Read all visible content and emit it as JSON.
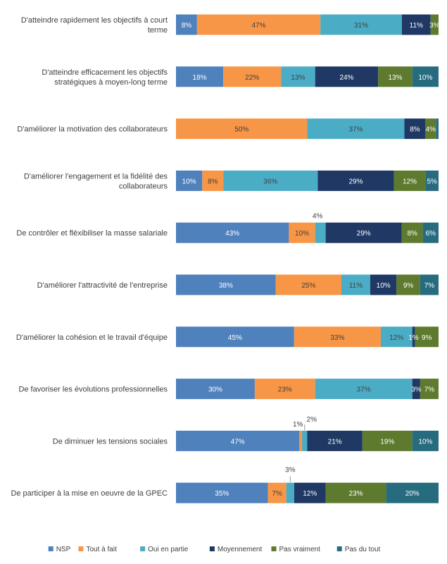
{
  "chart_data": {
    "type": "bar",
    "orientation": "horizontal",
    "stacked": true,
    "xlim": [
      0,
      100
    ],
    "grid": false,
    "legend_position": "bottom",
    "series": [
      {
        "name": "NSP",
        "color": "#4f81bd"
      },
      {
        "name": "Tout à fait",
        "color": "#f79646"
      },
      {
        "name": "Oui en partie",
        "color": "#4bacc6"
      },
      {
        "name": "Moyennement",
        "color": "#1f3864"
      },
      {
        "name": "Pas vraiment",
        "color": "#5e7a2e"
      },
      {
        "name": "Pas du tout",
        "color": "#276b7f"
      }
    ],
    "categories": [
      {
        "label_lines": [
          "D'atteindre rapidement les objectifs à court",
          "terme"
        ],
        "values": [
          8,
          47,
          31,
          11,
          3,
          0
        ],
        "labels": [
          "8%",
          "47%",
          "31%",
          "11%",
          "3%",
          ""
        ],
        "outside_labels": []
      },
      {
        "label_lines": [
          "D'atteindre efficacement les objectifs",
          "stratégiques à moyen-long terme"
        ],
        "values": [
          18,
          22,
          13,
          24,
          13,
          10
        ],
        "labels": [
          "18%",
          "22%",
          "13%",
          "24%",
          "13%",
          "10%"
        ],
        "outside_labels": []
      },
      {
        "label_lines": [
          "D'améliorer la motivation des collaborateurs"
        ],
        "values": [
          0,
          50,
          37,
          8,
          4,
          1
        ],
        "labels": [
          "",
          "50%",
          "37%",
          "8%",
          "4%",
          ""
        ],
        "outside_labels": []
      },
      {
        "label_lines": [
          "D'améliorer l'engagement et la fidélité des",
          "collaborateurs"
        ],
        "values": [
          10,
          8,
          36,
          29,
          12,
          5
        ],
        "labels": [
          "10%",
          "8%",
          "36%",
          "29%",
          "12%",
          "5%"
        ],
        "outside_labels": []
      },
      {
        "label_lines": [
          "De contrôler et fléxibiliser la masse salariale"
        ],
        "values": [
          43,
          10,
          4,
          29,
          8,
          6
        ],
        "labels": [
          "43%",
          "10%",
          "",
          "29%",
          "8%",
          "6%"
        ],
        "outside_labels": [
          {
            "series": 2,
            "text": "4%",
            "leader": false
          }
        ]
      },
      {
        "label_lines": [
          "D'améliorer l'attractivité de l'entreprise"
        ],
        "values": [
          38,
          25,
          11,
          10,
          9,
          7
        ],
        "labels": [
          "38%",
          "25%",
          "11%",
          "10%",
          "9%",
          "7%"
        ],
        "outside_labels": []
      },
      {
        "label_lines": [
          "D'améliorer la cohésion et le travail d'équipe"
        ],
        "values": [
          45,
          33,
          12,
          1,
          9,
          0
        ],
        "labels": [
          "45%",
          "33%",
          "12%",
          "1%",
          "9%",
          ""
        ],
        "outside_labels": []
      },
      {
        "label_lines": [
          "De favoriser les évolutions professionnelles"
        ],
        "values": [
          30,
          23,
          37,
          3,
          7,
          0
        ],
        "labels": [
          "30%",
          "23%",
          "37%",
          "3%",
          "7%",
          ""
        ],
        "outside_labels": []
      },
      {
        "label_lines": [
          "De diminuer les tensions sociales"
        ],
        "values": [
          47,
          1,
          2,
          21,
          19,
          10
        ],
        "labels": [
          "47%",
          "",
          "",
          "21%",
          "19%",
          "10%"
        ],
        "outside_labels": [
          {
            "series": 1,
            "text": "1%",
            "leader": false
          },
          {
            "series": 2,
            "text": "2%",
            "leader": true
          }
        ]
      },
      {
        "label_lines": [
          "De participer à la mise en oeuvre de la GPEC"
        ],
        "values": [
          35,
          7,
          3,
          12,
          23,
          20
        ],
        "labels": [
          "35%",
          "7%",
          "",
          "12%",
          "23%",
          "20%"
        ],
        "outside_labels": [
          {
            "series": 2,
            "text": "3%",
            "leader": true
          }
        ]
      }
    ]
  }
}
